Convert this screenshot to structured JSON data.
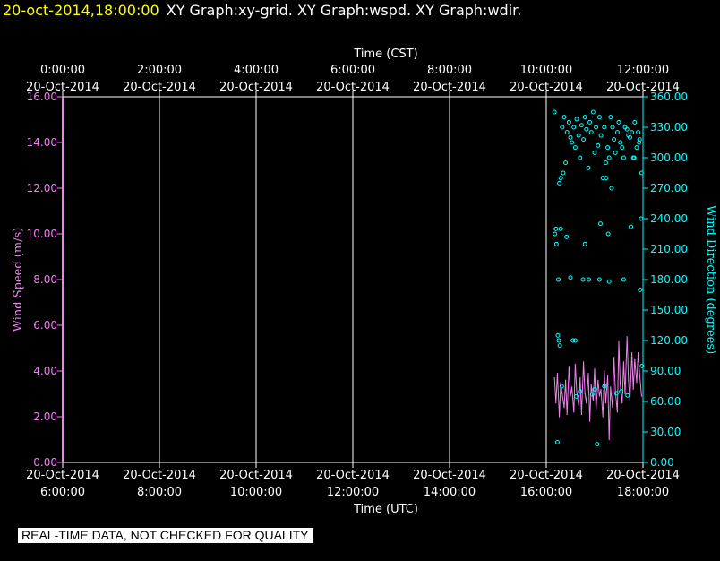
{
  "header": {
    "datetime": "20-oct-2014,18:00:00",
    "graphs": "XY Graph:xy-grid.  XY Graph:wspd.  XY Graph:wdir."
  },
  "footer": {
    "quality_note": "REAL-TIME DATA, NOT CHECKED FOR QUALITY"
  },
  "colors": {
    "background": "#000000",
    "axes": "#ffffff",
    "wind_speed": "#ee82ee",
    "wind_direction": "#00ffff",
    "header_time": "#ffff00"
  },
  "chart_data": {
    "type": "line",
    "top_axis": {
      "title": "Time (CST)",
      "ticks": [
        {
          "t": "0:00:00",
          "d": "20-Oct-2014"
        },
        {
          "t": "2:00:00",
          "d": "20-Oct-2014"
        },
        {
          "t": "4:00:00",
          "d": "20-Oct-2014"
        },
        {
          "t": "6:00:00",
          "d": "20-Oct-2014"
        },
        {
          "t": "8:00:00",
          "d": "20-Oct-2014"
        },
        {
          "t": "10:00:00",
          "d": "20-Oct-2014"
        },
        {
          "t": "12:00:00",
          "d": "20-Oct-2014"
        }
      ]
    },
    "bottom_axis": {
      "title": "Time (UTC)",
      "range": [
        "2014-10-20 06:00",
        "2014-10-20 18:00"
      ],
      "ticks": [
        {
          "d": "20-Oct-2014",
          "t": "6:00:00"
        },
        {
          "d": "20-Oct-2014",
          "t": "8:00:00"
        },
        {
          "d": "20-Oct-2014",
          "t": "10:00:00"
        },
        {
          "d": "20-Oct-2014",
          "t": "12:00:00"
        },
        {
          "d": "20-Oct-2014",
          "t": "14:00:00"
        },
        {
          "d": "20-Oct-2014",
          "t": "16:00:00"
        },
        {
          "d": "20-Oct-2014",
          "t": "18:00:00"
        }
      ]
    },
    "left_axis": {
      "title": "Wind Speed (m/s)",
      "ylim": [
        0,
        16
      ],
      "ticks": [
        "0.00",
        "2.00",
        "4.00",
        "6.00",
        "8.00",
        "10.00",
        "12.00",
        "14.00",
        "16.00"
      ]
    },
    "right_axis": {
      "title": "Wind Direction (degrees)",
      "ylim": [
        0,
        360
      ],
      "ticks": [
        "0.00",
        "30.00",
        "60.00",
        "90.00",
        "120.00",
        "150.00",
        "180.00",
        "210.00",
        "240.00",
        "270.00",
        "300.00",
        "330.00",
        "360.00"
      ]
    },
    "grid": "vertical",
    "series": [
      {
        "name": "Wind Speed",
        "kind": "line",
        "x_hours_utc": [
          16.17,
          16.2,
          16.23,
          16.27,
          16.3,
          16.33,
          16.37,
          16.4,
          16.43,
          16.47,
          16.5,
          16.53,
          16.57,
          16.6,
          16.63,
          16.67,
          16.7,
          16.73,
          16.77,
          16.8,
          16.83,
          16.87,
          16.9,
          16.93,
          16.97,
          17.0,
          17.03,
          17.07,
          17.1,
          17.13,
          17.17,
          17.2,
          17.23,
          17.27,
          17.3,
          17.33,
          17.37,
          17.4,
          17.43,
          17.47,
          17.5,
          17.53,
          17.57,
          17.6,
          17.63,
          17.67,
          17.7,
          17.73,
          17.77,
          17.8,
          17.83,
          17.87,
          17.9,
          17.93,
          17.97
        ],
        "values": [
          3.7,
          2.6,
          3.9,
          2.0,
          3.5,
          3.0,
          2.4,
          3.6,
          2.1,
          4.2,
          2.9,
          3.3,
          2.2,
          4.3,
          3.1,
          2.5,
          3.7,
          2.1,
          4.4,
          3.0,
          2.6,
          3.9,
          1.8,
          3.4,
          2.7,
          4.1,
          2.3,
          3.6,
          2.9,
          3.2,
          2.0,
          4.0,
          2.6,
          3.8,
          1.0,
          3.3,
          2.4,
          4.6,
          3.1,
          2.2,
          5.3,
          3.4,
          2.6,
          4.4,
          3.0,
          5.5,
          3.6,
          2.7,
          4.8,
          3.2,
          4.5,
          3.5,
          4.8,
          3.9,
          2.9
        ]
      },
      {
        "name": "Wind Direction",
        "kind": "scatter",
        "x_hours_utc": [
          16.17,
          16.2,
          16.23,
          16.27,
          16.3,
          16.33,
          16.37,
          16.4,
          16.43,
          16.47,
          16.5,
          16.53,
          16.57,
          16.6,
          16.63,
          16.67,
          16.7,
          16.73,
          16.77,
          16.8,
          16.83,
          16.87,
          16.9,
          16.93,
          16.97,
          17.0,
          17.03,
          17.07,
          17.1,
          17.13,
          17.17,
          17.2,
          17.23,
          17.27,
          17.3,
          17.33,
          17.37,
          17.4,
          17.43,
          17.47,
          17.5,
          17.53,
          17.57,
          17.6,
          17.63,
          17.67,
          17.7,
          17.73,
          17.77,
          17.8,
          17.83,
          17.87,
          17.9,
          17.93,
          17.97,
          16.18,
          16.21,
          16.25,
          16.3,
          16.35,
          16.42,
          16.5,
          16.55,
          16.62,
          16.7,
          16.8,
          16.88,
          16.95,
          17.05,
          17.12,
          17.2,
          17.28,
          17.35,
          17.45,
          17.55,
          17.6,
          17.68,
          17.75,
          17.82,
          17.92,
          17.98,
          16.24,
          16.26,
          16.28,
          16.32,
          16.6,
          16.76,
          17.0,
          17.1,
          17.24,
          17.3,
          17.94,
          17.96
        ],
        "values": [
          345,
          230,
          20,
          275,
          280,
          330,
          340,
          295,
          325,
          335,
          320,
          315,
          330,
          310,
          338,
          322,
          300,
          332,
          318,
          340,
          328,
          290,
          335,
          325,
          345,
          305,
          330,
          312,
          340,
          322,
          280,
          330,
          295,
          310,
          300,
          340,
          330,
          318,
          305,
          325,
          335,
          315,
          310,
          300,
          330,
          328,
          322,
          320,
          325,
          300,
          335,
          310,
          325,
          318,
          285,
          225,
          215,
          180,
          230,
          285,
          222,
          182,
          120,
          65,
          70,
          215,
          180,
          67,
          18,
          235,
          75,
          225,
          270,
          68,
          70,
          180,
          66,
          232,
          300,
          315,
          95,
          125,
          120,
          115,
          75,
          120,
          180,
          72,
          180,
          280,
          178,
          170,
          240
        ]
      }
    ]
  }
}
